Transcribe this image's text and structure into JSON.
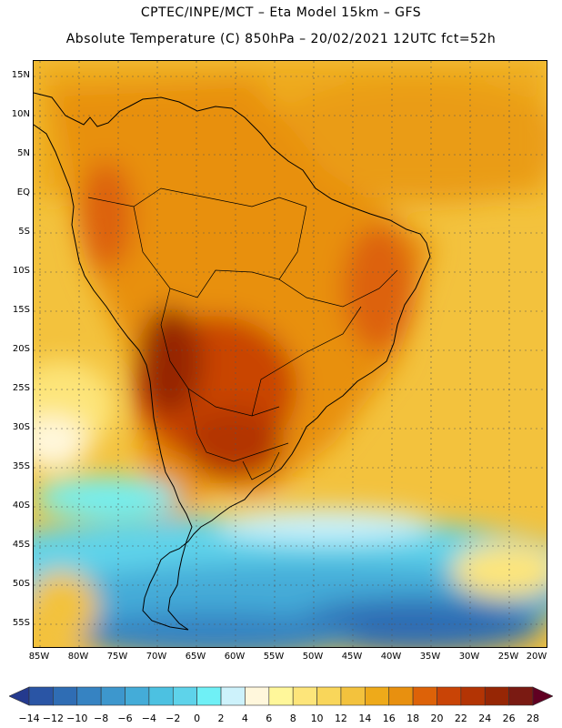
{
  "header": {
    "line1": "CPTEC/INPE/MCT –  Eta Model 15km – GFS",
    "line2": "Absolute Temperature (C) 850hPa – 20/02/2021 12UTC fct=52h"
  },
  "map": {
    "lat_labels": [
      "15N",
      "10N",
      "5N",
      "EQ",
      "5S",
      "10S",
      "15S",
      "20S",
      "25S",
      "30S",
      "35S",
      "40S",
      "45S",
      "50S",
      "55S"
    ],
    "lon_labels": [
      "85W",
      "80W",
      "75W",
      "70W",
      "65W",
      "60W",
      "55W",
      "50W",
      "45W",
      "40W",
      "35W",
      "30W",
      "25W",
      "20W"
    ]
  },
  "legend": {
    "levels": [
      "−14",
      "−12",
      "−10",
      "−8",
      "−6",
      "−4",
      "−2",
      "0",
      "2",
      "4",
      "6",
      "8",
      "10",
      "12",
      "14",
      "16",
      "18",
      "20",
      "22",
      "24",
      "26",
      "28"
    ],
    "colors": [
      "#243a8e",
      "#2a55a5",
      "#2f6db4",
      "#3683c2",
      "#3d97cd",
      "#44acd8",
      "#4cc1e1",
      "#5ed3ea",
      "#6ff0f6",
      "#cdf2fb",
      "#fff7dc",
      "#fff79a",
      "#fde57a",
      "#f9d65a",
      "#f3c23d",
      "#eeaa1a",
      "#e8900f",
      "#dd6208",
      "#c94406",
      "#b33404",
      "#962605",
      "#7a1a12",
      "#600022"
    ]
  }
}
